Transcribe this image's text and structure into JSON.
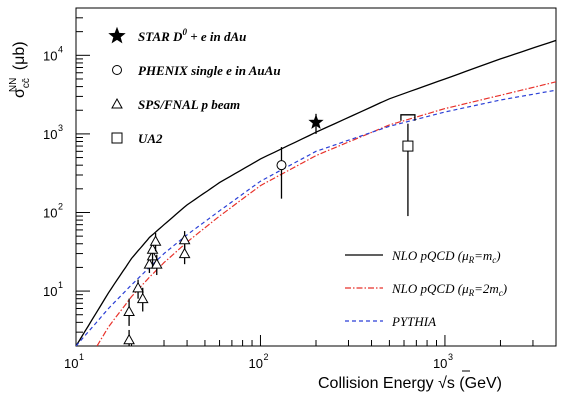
{
  "chart_data": {
    "type": "scatter",
    "x_scale": "log",
    "y_scale": "log",
    "xlim": [
      10,
      4000
    ],
    "ylim": [
      2,
      40000
    ],
    "xlabel": "Collision Energy √s (GeV)",
    "ylabel": "σ cc̄ NN (μb)",
    "x_ticks": [
      {
        "value": 10,
        "base": "10",
        "exp": "1"
      },
      {
        "value": 100,
        "base": "10",
        "exp": "2"
      },
      {
        "value": 1000,
        "base": "10",
        "exp": "3"
      }
    ],
    "y_ticks": [
      {
        "value": 10,
        "base": "10",
        "exp": "1"
      },
      {
        "value": 100,
        "base": "10",
        "exp": "2"
      },
      {
        "value": 1000,
        "base": "10",
        "exp": "3"
      },
      {
        "value": 10000,
        "base": "10",
        "exp": "4"
      }
    ],
    "curves": [
      {
        "name": "NLO pQCD (μR=mc)",
        "style": "solid",
        "color": "#000000",
        "x": [
          10,
          15,
          20,
          25,
          30,
          40,
          60,
          100,
          200,
          500,
          1000,
          2000,
          4000
        ],
        "y": [
          2,
          9.5,
          26,
          48,
          70,
          125,
          240,
          480,
          1050,
          2800,
          5000,
          9000,
          15500
        ]
      },
      {
        "name": "NLO pQCD (μR=2mc)",
        "style": "dashdot",
        "color": "#e8322b",
        "x": [
          13,
          15,
          20,
          25,
          30,
          40,
          60,
          100,
          200,
          500,
          1000,
          2000,
          4000
        ],
        "y": [
          2,
          3.5,
          8.5,
          15,
          23,
          42,
          90,
          220,
          530,
          1300,
          2100,
          3100,
          4600
        ]
      },
      {
        "name": "PYTHIA",
        "style": "dashed",
        "color": "#2a3fd6",
        "x": [
          10,
          15,
          20,
          25,
          30,
          40,
          60,
          100,
          200,
          500,
          1000,
          2000,
          4000
        ],
        "y": [
          2,
          6,
          12,
          20,
          30,
          52,
          105,
          250,
          600,
          1250,
          1900,
          2700,
          3600
        ]
      }
    ],
    "series": [
      {
        "name": "STAR D0 + e in dAu",
        "marker": "star",
        "points": [
          {
            "x": 200,
            "y": 1400,
            "ylo": 1000,
            "yhi": 1800
          }
        ]
      },
      {
        "name": "PHENIX single e in AuAu",
        "marker": "circle",
        "points": [
          {
            "x": 130,
            "y": 400,
            "ylo": 150,
            "yhi": 680
          }
        ]
      },
      {
        "name": "SPS/FNAL p beam",
        "marker": "triangle",
        "points": [
          {
            "x": 19.4,
            "y": 2.4,
            "ylo": 2,
            "yhi": 3.2
          },
          {
            "x": 19.4,
            "y": 5.5,
            "ylo": 3.6,
            "yhi": 8
          },
          {
            "x": 21.7,
            "y": 11,
            "ylo": 8,
            "yhi": 14
          },
          {
            "x": 23,
            "y": 8,
            "ylo": 5.5,
            "yhi": 11
          },
          {
            "x": 25,
            "y": 22,
            "ylo": 17,
            "yhi": 28
          },
          {
            "x": 26,
            "y": 28,
            "ylo": 20,
            "yhi": 36
          },
          {
            "x": 26,
            "y": 34,
            "ylo": 25,
            "yhi": 42
          },
          {
            "x": 27,
            "y": 43,
            "ylo": 32,
            "yhi": 55
          },
          {
            "x": 27.4,
            "y": 22,
            "ylo": 16,
            "yhi": 29
          },
          {
            "x": 38.8,
            "y": 30,
            "ylo": 22,
            "yhi": 38
          },
          {
            "x": 38.8,
            "y": 45,
            "ylo": 34,
            "yhi": 58
          }
        ]
      },
      {
        "name": "UA2",
        "marker": "square",
        "points": [
          {
            "x": 630,
            "y": 700,
            "ylo": 90,
            "yhi": 1350
          }
        ],
        "bracket": {
          "x": 630,
          "y": 1750
        }
      }
    ],
    "legend_top": [
      {
        "marker": "star",
        "text": "STAR D",
        "sup": "0",
        "text2": " + e in dAu"
      },
      {
        "marker": "circle",
        "text": "PHENIX single e in AuAu"
      },
      {
        "marker": "triangle",
        "text": "SPS/FNAL p beam"
      },
      {
        "marker": "square",
        "text": "UA2"
      }
    ],
    "legend_bottom": [
      {
        "style": "solid",
        "color": "#000000",
        "text": "NLO pQCD (μ",
        "sub1": "R",
        "mid": "=m",
        "sub2": "c",
        "end": ")"
      },
      {
        "style": "dashdot",
        "color": "#e8322b",
        "text": "NLO pQCD (μ",
        "sub1": "R",
        "mid": "=2m",
        "sub2": "c",
        "end": ")"
      },
      {
        "style": "dashed",
        "color": "#2a3fd6",
        "text": "PYTHIA"
      }
    ]
  }
}
